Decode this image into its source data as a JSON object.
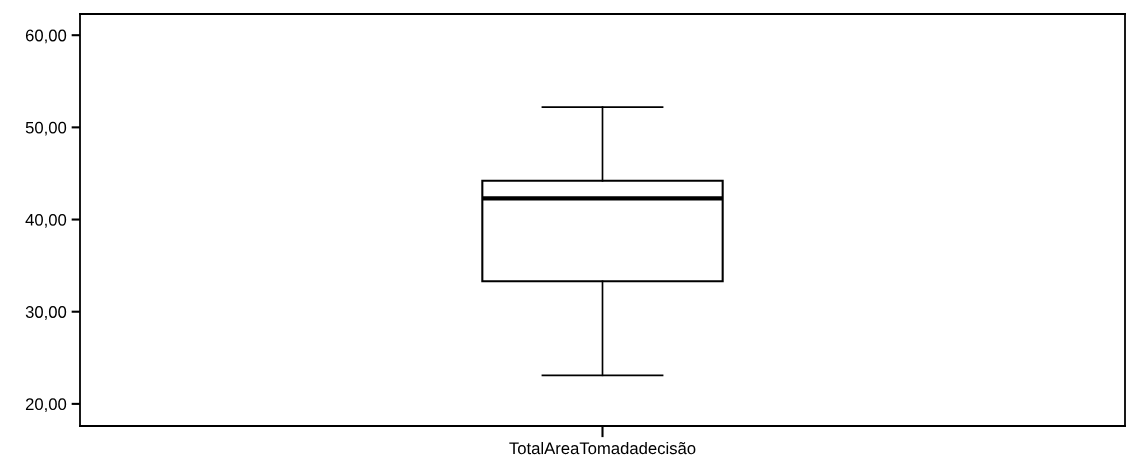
{
  "chart_data": {
    "type": "box",
    "categories": [
      "TotalAreaTomadadecisão"
    ],
    "boxes": [
      {
        "low": 23.1,
        "q1": 33.3,
        "median": 42.3,
        "q3": 44.2,
        "high": 52.2
      }
    ],
    "ylim": [
      17.6,
      62.3
    ],
    "yticks": [
      {
        "value": 20,
        "label": "20,00"
      },
      {
        "value": 30,
        "label": "30,00"
      },
      {
        "value": 40,
        "label": "40,00"
      },
      {
        "value": 50,
        "label": "50,00"
      },
      {
        "value": 60,
        "label": "60,00"
      }
    ],
    "color": "#ffffff",
    "grid": false,
    "legend": false
  }
}
